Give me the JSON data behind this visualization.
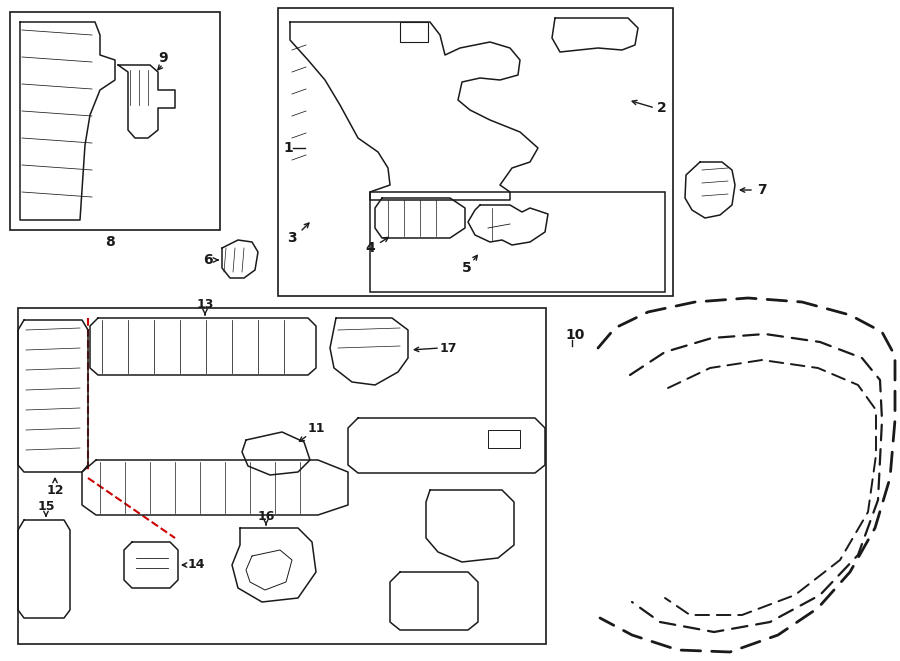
{
  "bg_color": "#ffffff",
  "line_color": "#1a1a1a",
  "red_color": "#cc0000",
  "fig_w": 9.0,
  "fig_h": 6.61,
  "dpi": 100
}
